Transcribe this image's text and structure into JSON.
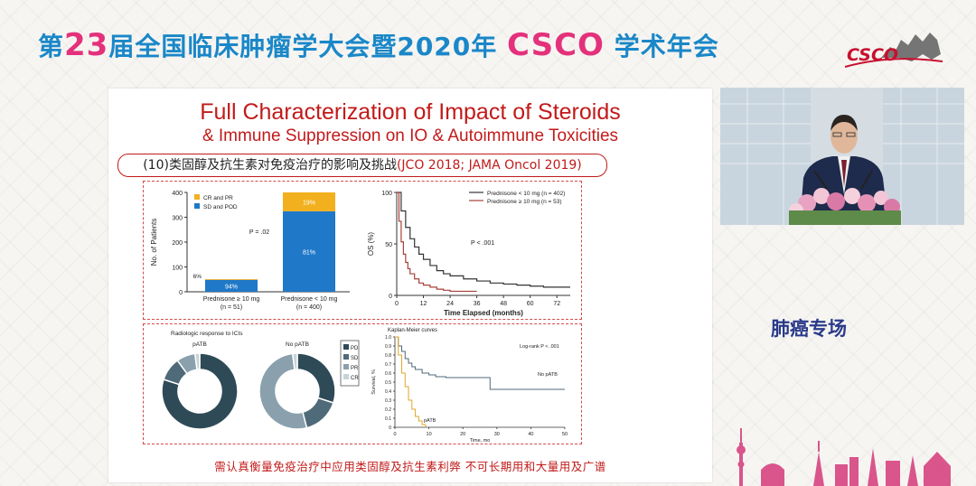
{
  "banner": {
    "part1": "第",
    "number": "23",
    "part2": "届全国临床肿瘤学大会暨2020年",
    "brand": "CSCO",
    "part3": "学术年会",
    "logo_text": "CSCO"
  },
  "slide": {
    "title_line1": "Full Characterization of Impact of Steroids",
    "title_line2": "& Immune Suppression on IO & Autoimmune Toxicities",
    "subtitle_main": "(10)类固醇及抗生素对免疫治疗的影响及挑战",
    "subtitle_cite": "(JCO 2018; JAMA Oncol 2019)",
    "bottom_note": "需认真衡量免疫治疗中应用类固醇及抗生素利弊 不可长期用和大量用及广谱"
  },
  "section_label": "肺癌专场",
  "colors": {
    "accent_red": "#c21a1a",
    "cr_pr": "#f2b01e",
    "sd_pod": "#1f78c8",
    "pd": "#2f4a57",
    "sd": "#4f6a78",
    "pr": "#8aa0ad",
    "cr": "#c7d3d9",
    "km_low": "#333333",
    "km_high": "#a8403a",
    "patb": "#e0a72a",
    "nopatb": "#4f6a78"
  },
  "chart_data": [
    {
      "type": "bar",
      "categories": [
        "Prednisone ≥ 10 mg (n = 51)",
        "Prednisone < 10 mg (n = 400)"
      ],
      "category_lines": [
        [
          "Prednisone ≥ 10 mg",
          "(n = 51)"
        ],
        [
          "Prednisone < 10 mg",
          "(n = 400)"
        ]
      ],
      "series": [
        {
          "name": "SD and POD",
          "values": [
            48,
            324
          ],
          "labels": [
            "94%",
            "81%"
          ]
        },
        {
          "name": "CR and PR",
          "values": [
            3,
            76
          ],
          "labels": [
            "6%",
            "19%"
          ]
        }
      ],
      "ylabel": "No. of Patients",
      "yticks": [
        0,
        100,
        200,
        300,
        400
      ],
      "ylim": [
        0,
        400
      ],
      "annotation": "P = .02",
      "legend": [
        "CR and PR",
        "SD and POD"
      ]
    },
    {
      "type": "line",
      "xlabel": "Time Elapsed (months)",
      "ylabel": "OS (%)",
      "xticks": [
        0,
        12,
        24,
        36,
        48,
        60,
        72
      ],
      "yticks": [
        0,
        50,
        100
      ],
      "xlim": [
        0,
        78
      ],
      "ylim": [
        0,
        100
      ],
      "annotation": "P < .001",
      "series": [
        {
          "name": "Prednisone < 10 mg (n = 402)",
          "x": [
            0,
            2,
            4,
            6,
            8,
            10,
            12,
            15,
            18,
            21,
            24,
            30,
            36,
            42,
            48,
            54,
            60,
            66,
            72,
            78
          ],
          "y": [
            100,
            82,
            66,
            55,
            47,
            40,
            35,
            29,
            24,
            21,
            19,
            16,
            14,
            12,
            11,
            10,
            9,
            8,
            8,
            8
          ]
        },
        {
          "name": "Prednisone ≥ 10 mg (n = 53)",
          "x": [
            0,
            1,
            2,
            3,
            4,
            5,
            6,
            8,
            10,
            12,
            15,
            18,
            21,
            24,
            30,
            36
          ],
          "y": [
            100,
            72,
            52,
            40,
            32,
            26,
            21,
            16,
            12,
            10,
            8,
            6,
            5,
            4,
            4,
            4
          ]
        }
      ]
    },
    {
      "type": "pie",
      "title": "Radiologic response to ICIs",
      "charts": [
        {
          "name": "pATB",
          "values": [
            80,
            10,
            8,
            2
          ]
        },
        {
          "name": "No pATB",
          "values": [
            30,
            16,
            52,
            2
          ]
        }
      ],
      "legend": [
        "PD",
        "SD",
        "PR",
        "CR"
      ]
    },
    {
      "type": "line",
      "title": "Kaplan-Meier curves",
      "ylabel": "Survival, %",
      "xlabel": "Time, mo",
      "xticks": [
        0,
        10,
        20,
        30,
        40,
        50
      ],
      "yticks": [
        0,
        0.1,
        0.2,
        0.3,
        0.4,
        0.5,
        0.6,
        0.7,
        0.8,
        0.9,
        1.0
      ],
      "yticklabels": [
        "0",
        "0.1",
        "0.2",
        "0.3",
        "0.4",
        "0.5",
        "0.6",
        "0.7",
        "0.8",
        "0.9",
        "1.0"
      ],
      "xlim": [
        0,
        50
      ],
      "ylim": [
        0,
        1
      ],
      "annotation": "Log-rank P < .001",
      "series": [
        {
          "name": "No pATB",
          "x": [
            0,
            1,
            2,
            3,
            4,
            5,
            6,
            8,
            10,
            12,
            15,
            20,
            22,
            25,
            28,
            30,
            35,
            40,
            45,
            50
          ],
          "y": [
            1.0,
            0.9,
            0.84,
            0.76,
            0.71,
            0.67,
            0.64,
            0.6,
            0.58,
            0.56,
            0.55,
            0.55,
            0.55,
            0.55,
            0.42,
            0.42,
            0.42,
            0.42,
            0.42,
            0.42
          ]
        },
        {
          "name": "pATB",
          "x": [
            0,
            1,
            2,
            3,
            4,
            5,
            6,
            7,
            8,
            9
          ],
          "y": [
            1.0,
            0.8,
            0.6,
            0.45,
            0.3,
            0.2,
            0.12,
            0.07,
            0.03,
            0.0
          ]
        }
      ]
    }
  ]
}
